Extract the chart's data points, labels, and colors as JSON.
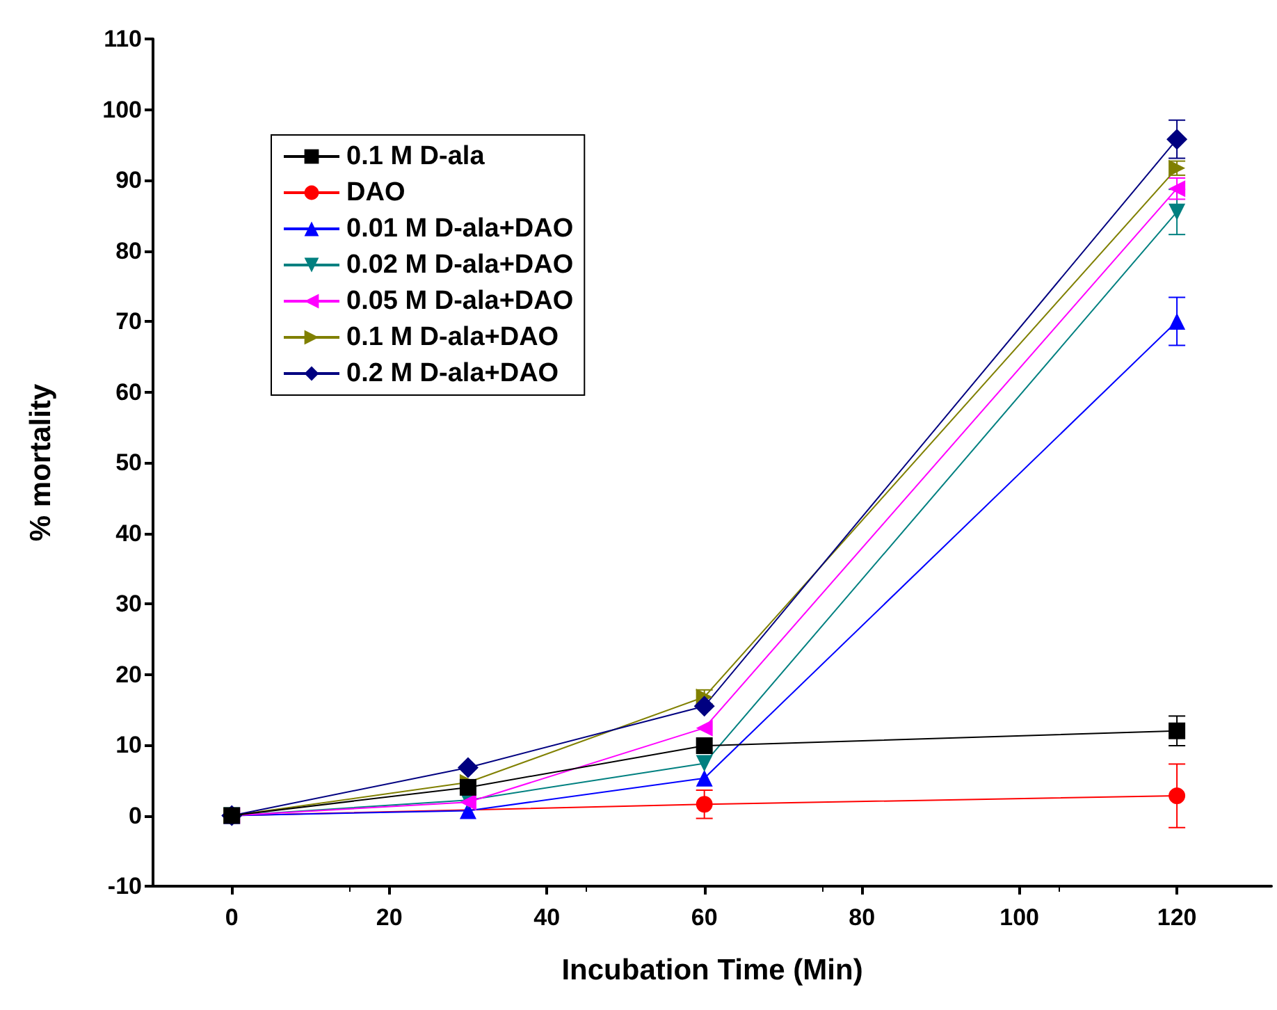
{
  "chart_data": {
    "type": "line",
    "xlabel": "Incubation Time (Min)",
    "ylabel": "% mortality",
    "x": [
      0,
      30,
      60,
      120
    ],
    "series": [
      {
        "name": "0.1 M D-ala",
        "color": "#000000",
        "marker": "square",
        "values": [
          0,
          4,
          9.9,
          12
        ],
        "errors": [
          null,
          null,
          null,
          2.1
        ]
      },
      {
        "name": "DAO",
        "color": "#ff0000",
        "marker": "circle",
        "values": [
          0,
          null,
          1.6,
          2.8
        ],
        "errors": [
          null,
          null,
          2,
          4.5
        ]
      },
      {
        "name": "0.01 M D-ala+DAO",
        "color": "#0000ff",
        "marker": "triangle",
        "values": [
          0,
          0.7,
          5.3,
          70
        ],
        "errors": [
          null,
          null,
          null,
          3.4
        ]
      },
      {
        "name": "0.02 M D-ala+DAO",
        "color": "#008080",
        "marker": "triangle-down",
        "values": [
          0,
          2.2,
          7.4,
          85.5
        ],
        "errors": [
          null,
          null,
          null,
          3.2
        ]
      },
      {
        "name": "0.05 M D-ala+DAO",
        "color": "#ff00ff",
        "marker": "triangle-left",
        "values": [
          0,
          1.9,
          12.4,
          88.8
        ],
        "errors": [
          null,
          null,
          null,
          1.5
        ]
      },
      {
        "name": "0.1 M D-ala+DAO",
        "color": "#808000",
        "marker": "triangle-right",
        "values": [
          0,
          4.7,
          16.8,
          91.7
        ],
        "errors": [
          null,
          null,
          1,
          1
        ]
      },
      {
        "name": "0.2 M D-ala+DAO",
        "color": "#000080",
        "marker": "diamond",
        "values": [
          0,
          6.8,
          15.5,
          95.8
        ],
        "errors": [
          null,
          null,
          null,
          2.7
        ]
      }
    ],
    "xlim": [
      -10,
      132
    ],
    "xticks": [
      0,
      20,
      40,
      60,
      80,
      100,
      120
    ],
    "ylim": [
      -10,
      110
    ],
    "yticks": [
      -10,
      0,
      10,
      20,
      30,
      40,
      50,
      60,
      70,
      80,
      90,
      100,
      110
    ],
    "legend": "top left",
    "grid": false,
    "line_style": "solid"
  }
}
